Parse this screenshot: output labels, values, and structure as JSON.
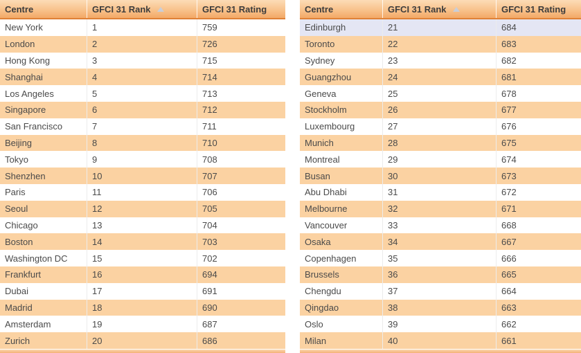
{
  "theme": {
    "header-grad-top": "#fcdcb6",
    "header-grad-mid": "#f8c28c",
    "header-grad-bottom": "#f3a967",
    "header-border": "#df8136",
    "row-orange": "#fbd2a2",
    "row-white": "#ffffff",
    "row-highlight": "#e4e6f4",
    "cell-border": "#ececec",
    "header-text": "#3c3c3c",
    "body-text": "#4a4a4a",
    "sort-arrow": "#c9ced9"
  },
  "tables": [
    {
      "columns": [
        "Centre",
        "GFCI 31 Rank",
        "GFCI 31 Rating"
      ],
      "sorted_by": "GFCI 31 Rank",
      "sort_direction": "ascending",
      "rows": [
        {
          "centre": "New York",
          "rank": "1",
          "rating": "759"
        },
        {
          "centre": "London",
          "rank": "2",
          "rating": "726"
        },
        {
          "centre": "Hong Kong",
          "rank": "3",
          "rating": "715"
        },
        {
          "centre": "Shanghai",
          "rank": "4",
          "rating": "714"
        },
        {
          "centre": "Los Angeles",
          "rank": "5",
          "rating": "713"
        },
        {
          "centre": "Singapore",
          "rank": "6",
          "rating": "712"
        },
        {
          "centre": "San Francisco",
          "rank": "7",
          "rating": "711"
        },
        {
          "centre": "Beijing",
          "rank": "8",
          "rating": "710"
        },
        {
          "centre": "Tokyo",
          "rank": "9",
          "rating": "708"
        },
        {
          "centre": "Shenzhen",
          "rank": "10",
          "rating": "707"
        },
        {
          "centre": "Paris",
          "rank": "11",
          "rating": "706"
        },
        {
          "centre": "Seoul",
          "rank": "12",
          "rating": "705"
        },
        {
          "centre": "Chicago",
          "rank": "13",
          "rating": "704"
        },
        {
          "centre": "Boston",
          "rank": "14",
          "rating": "703"
        },
        {
          "centre": "Washington DC",
          "rank": "15",
          "rating": "702"
        },
        {
          "centre": "Frankfurt",
          "rank": "16",
          "rating": "694"
        },
        {
          "centre": "Dubai",
          "rank": "17",
          "rating": "691"
        },
        {
          "centre": "Madrid",
          "rank": "18",
          "rating": "690"
        },
        {
          "centre": "Amsterdam",
          "rank": "19",
          "rating": "687"
        },
        {
          "centre": "Zurich",
          "rank": "20",
          "rating": "686"
        }
      ]
    },
    {
      "columns": [
        "Centre",
        "GFCI 31 Rank",
        "GFCI 31 Rating"
      ],
      "sorted_by": "GFCI 31 Rank",
      "sort_direction": "ascending",
      "rows": [
        {
          "centre": "Edinburgh",
          "rank": "21",
          "rating": "684",
          "highlighted": true
        },
        {
          "centre": "Toronto",
          "rank": "22",
          "rating": "683"
        },
        {
          "centre": "Sydney",
          "rank": "23",
          "rating": "682"
        },
        {
          "centre": "Guangzhou",
          "rank": "24",
          "rating": "681"
        },
        {
          "centre": "Geneva",
          "rank": "25",
          "rating": "678"
        },
        {
          "centre": "Stockholm",
          "rank": "26",
          "rating": "677"
        },
        {
          "centre": "Luxembourg",
          "rank": "27",
          "rating": "676"
        },
        {
          "centre": "Munich",
          "rank": "28",
          "rating": "675"
        },
        {
          "centre": "Montreal",
          "rank": "29",
          "rating": "674"
        },
        {
          "centre": "Busan",
          "rank": "30",
          "rating": "673"
        },
        {
          "centre": "Abu Dhabi",
          "rank": "31",
          "rating": "672"
        },
        {
          "centre": "Melbourne",
          "rank": "32",
          "rating": "671"
        },
        {
          "centre": "Vancouver",
          "rank": "33",
          "rating": "668"
        },
        {
          "centre": "Osaka",
          "rank": "34",
          "rating": "667"
        },
        {
          "centre": "Copenhagen",
          "rank": "35",
          "rating": "666"
        },
        {
          "centre": "Brussels",
          "rank": "36",
          "rating": "665"
        },
        {
          "centre": "Chengdu",
          "rank": "37",
          "rating": "664"
        },
        {
          "centre": "Qingdao",
          "rank": "38",
          "rating": "663"
        },
        {
          "centre": "Oslo",
          "rank": "39",
          "rating": "662"
        },
        {
          "centre": "Milan",
          "rank": "40",
          "rating": "661"
        }
      ]
    }
  ]
}
